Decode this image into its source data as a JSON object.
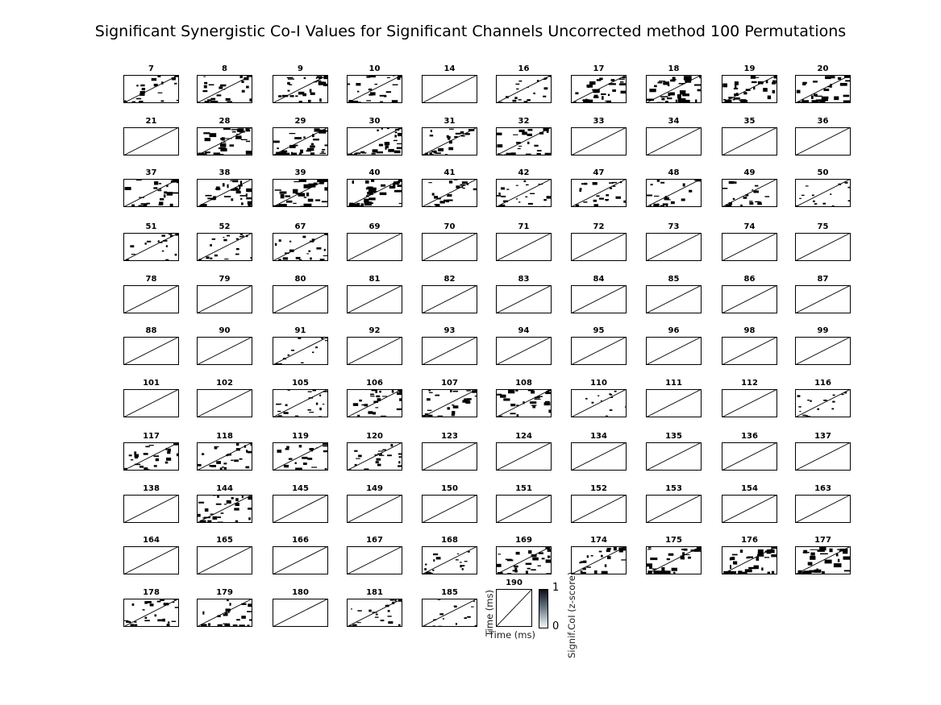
{
  "title": "Significant Synergistic Co-I Values for Significant Channels Uncorrected method 100 Permutations",
  "colors": {
    "significant": "#000000",
    "background": "#ffffff",
    "colormap_top": "#0d0d1f",
    "colormap_bottom": "#f4fafa"
  },
  "chart_data": {
    "type": "heatmap",
    "title": "Significant Synergistic Co-I Values for Significant Channels Uncorrected method 100 Permutations",
    "xlabel": "Time (ms)",
    "ylabel": "Time (ms)",
    "colorbar": {
      "label": "Signif.CoI (z-score)",
      "ticks": [
        "0",
        "1"
      ],
      "range": [
        0,
        1
      ]
    },
    "channels": [
      {
        "channel": "7",
        "density": 0.5
      },
      {
        "channel": "8",
        "density": 0.6
      },
      {
        "channel": "9",
        "density": 0.7
      },
      {
        "channel": "10",
        "density": 0.7
      },
      {
        "channel": "14",
        "density": 0
      },
      {
        "channel": "16",
        "density": 0.4
      },
      {
        "channel": "17",
        "density": 0.8
      },
      {
        "channel": "18",
        "density": 0.9
      },
      {
        "channel": "19",
        "density": 0.8
      },
      {
        "channel": "20",
        "density": 0.8
      },
      {
        "channel": "21",
        "density": 0
      },
      {
        "channel": "28",
        "density": 0.8
      },
      {
        "channel": "29",
        "density": 0.8
      },
      {
        "channel": "30",
        "density": 0.7
      },
      {
        "channel": "31",
        "density": 0.6
      },
      {
        "channel": "32",
        "density": 0.6
      },
      {
        "channel": "33",
        "density": 0
      },
      {
        "channel": "34",
        "density": 0
      },
      {
        "channel": "35",
        "density": 0
      },
      {
        "channel": "36",
        "density": 0
      },
      {
        "channel": "37",
        "density": 0.8
      },
      {
        "channel": "38",
        "density": 0.8
      },
      {
        "channel": "39",
        "density": 0.9
      },
      {
        "channel": "40",
        "density": 0.9
      },
      {
        "channel": "41",
        "density": 0.6
      },
      {
        "channel": "42",
        "density": 0.5
      },
      {
        "channel": "47",
        "density": 0.5
      },
      {
        "channel": "48",
        "density": 0.6
      },
      {
        "channel": "49",
        "density": 0.5
      },
      {
        "channel": "50",
        "density": 0.3
      },
      {
        "channel": "51",
        "density": 0.4
      },
      {
        "channel": "52",
        "density": 0.4
      },
      {
        "channel": "67",
        "density": 0.5
      },
      {
        "channel": "69",
        "density": 0
      },
      {
        "channel": "70",
        "density": 0
      },
      {
        "channel": "71",
        "density": 0
      },
      {
        "channel": "72",
        "density": 0
      },
      {
        "channel": "73",
        "density": 0
      },
      {
        "channel": "74",
        "density": 0
      },
      {
        "channel": "75",
        "density": 0
      },
      {
        "channel": "78",
        "density": 0
      },
      {
        "channel": "79",
        "density": 0
      },
      {
        "channel": "80",
        "density": 0
      },
      {
        "channel": "81",
        "density": 0
      },
      {
        "channel": "82",
        "density": 0
      },
      {
        "channel": "83",
        "density": 0
      },
      {
        "channel": "84",
        "density": 0
      },
      {
        "channel": "85",
        "density": 0
      },
      {
        "channel": "86",
        "density": 0
      },
      {
        "channel": "87",
        "density": 0
      },
      {
        "channel": "88",
        "density": 0
      },
      {
        "channel": "90",
        "density": 0
      },
      {
        "channel": "91",
        "density": 0.3
      },
      {
        "channel": "92",
        "density": 0
      },
      {
        "channel": "93",
        "density": 0
      },
      {
        "channel": "94",
        "density": 0
      },
      {
        "channel": "95",
        "density": 0
      },
      {
        "channel": "96",
        "density": 0
      },
      {
        "channel": "98",
        "density": 0
      },
      {
        "channel": "99",
        "density": 0
      },
      {
        "channel": "101",
        "density": 0
      },
      {
        "channel": "102",
        "density": 0
      },
      {
        "channel": "105",
        "density": 0.5
      },
      {
        "channel": "106",
        "density": 0.6
      },
      {
        "channel": "107",
        "density": 0.6
      },
      {
        "channel": "108",
        "density": 0.7
      },
      {
        "channel": "110",
        "density": 0.2
      },
      {
        "channel": "111",
        "density": 0
      },
      {
        "channel": "112",
        "density": 0
      },
      {
        "channel": "116",
        "density": 0.3
      },
      {
        "channel": "117",
        "density": 0.6
      },
      {
        "channel": "118",
        "density": 0.6
      },
      {
        "channel": "119",
        "density": 0.6
      },
      {
        "channel": "120",
        "density": 0.5
      },
      {
        "channel": "123",
        "density": 0
      },
      {
        "channel": "124",
        "density": 0
      },
      {
        "channel": "134",
        "density": 0
      },
      {
        "channel": "135",
        "density": 0
      },
      {
        "channel": "136",
        "density": 0
      },
      {
        "channel": "137",
        "density": 0
      },
      {
        "channel": "138",
        "density": 0
      },
      {
        "channel": "144",
        "density": 0.7
      },
      {
        "channel": "145",
        "density": 0
      },
      {
        "channel": "149",
        "density": 0
      },
      {
        "channel": "150",
        "density": 0
      },
      {
        "channel": "151",
        "density": 0
      },
      {
        "channel": "152",
        "density": 0
      },
      {
        "channel": "153",
        "density": 0
      },
      {
        "channel": "154",
        "density": 0
      },
      {
        "channel": "163",
        "density": 0
      },
      {
        "channel": "164",
        "density": 0
      },
      {
        "channel": "165",
        "density": 0
      },
      {
        "channel": "166",
        "density": 0
      },
      {
        "channel": "167",
        "density": 0
      },
      {
        "channel": "168",
        "density": 0.5
      },
      {
        "channel": "169",
        "density": 0.7
      },
      {
        "channel": "174",
        "density": 0.7
      },
      {
        "channel": "175",
        "density": 0.8
      },
      {
        "channel": "176",
        "density": 0.8
      },
      {
        "channel": "177",
        "density": 0.9
      },
      {
        "channel": "178",
        "density": 0.6
      },
      {
        "channel": "179",
        "density": 0.6
      },
      {
        "channel": "180",
        "density": 0
      },
      {
        "channel": "181",
        "density": 0.5
      },
      {
        "channel": "185",
        "density": 0.3
      },
      {
        "channel": "190",
        "density": 0
      }
    ]
  }
}
